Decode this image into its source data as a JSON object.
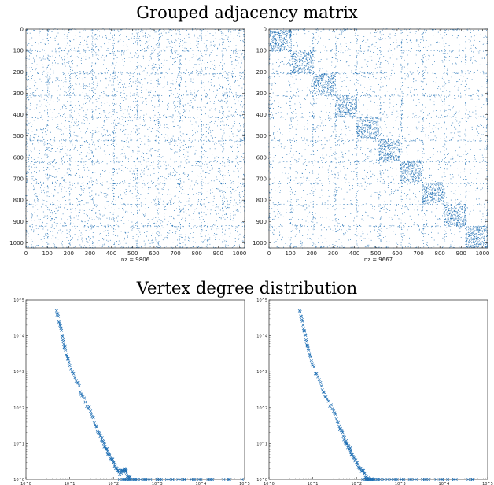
{
  "titles": {
    "top": "Grouped adjacency matrix",
    "bottom": "Vertex degree distribution"
  },
  "colors": {
    "marker": "#1f6fb4",
    "axis": "#262626"
  },
  "chart_data": [
    {
      "id": "spy_left",
      "type": "scatter",
      "subtype": "sparsity-pattern",
      "xlabel": "nz = 9806",
      "xlim": [
        0,
        1024
      ],
      "ylim": [
        0,
        1024
      ],
      "y_reversed": true,
      "xticks": [
        0,
        100,
        200,
        300,
        400,
        500,
        600,
        700,
        800,
        900,
        1000
      ],
      "yticks": [
        0,
        100,
        200,
        300,
        400,
        500,
        600,
        700,
        800,
        900,
        1000
      ],
      "nz": 9806,
      "dense_lines": [
        0,
        100,
        205,
        310,
        410,
        520,
        620,
        720,
        820,
        920,
        1020
      ],
      "diagonal_blocks": false
    },
    {
      "id": "spy_right",
      "type": "scatter",
      "subtype": "sparsity-pattern",
      "xlabel": "nz = 9667",
      "xlim": [
        0,
        1024
      ],
      "ylim": [
        0,
        1024
      ],
      "y_reversed": true,
      "xticks": [
        0,
        100,
        200,
        300,
        400,
        500,
        600,
        700,
        800,
        900,
        1000
      ],
      "yticks": [
        0,
        100,
        200,
        300,
        400,
        500,
        600,
        700,
        800,
        900,
        1000
      ],
      "nz": 9667,
      "dense_lines": [
        0,
        100,
        205,
        310,
        410,
        520,
        620,
        720,
        820,
        920,
        1020
      ],
      "diagonal_blocks": true,
      "block_size": 102
    },
    {
      "id": "degree_left",
      "type": "scatter",
      "marker": "x",
      "xscale": "log",
      "yscale": "log",
      "xlim": [
        1,
        100000
      ],
      "ylim": [
        1,
        100000
      ],
      "xticks": [
        "10^0",
        "10^1",
        "10^2",
        "10^3",
        "10^4",
        "10^5"
      ],
      "yticks": [
        "10^0",
        "10^1",
        "10^2",
        "10^3",
        "10^4",
        "10^5"
      ],
      "x": [
        5,
        6,
        7,
        8,
        10,
        15,
        20,
        30,
        40,
        50,
        60,
        70,
        80,
        100,
        120,
        150,
        180,
        200,
        250,
        300,
        500,
        1000,
        3000,
        10000
      ],
      "y": [
        50000,
        20000,
        8000,
        4000,
        1500,
        500,
        200,
        80,
        30,
        16,
        10,
        7,
        5,
        3,
        2,
        1.5,
        2,
        1.5,
        1,
        1,
        1,
        1,
        1,
        1
      ],
      "tail_x": [
        120,
        150,
        200,
        300,
        500,
        800,
        1500,
        3000,
        6000,
        12000,
        30000,
        80000
      ]
    },
    {
      "id": "degree_right",
      "type": "scatter",
      "marker": "x",
      "xscale": "log",
      "yscale": "log",
      "xlim": [
        1,
        100000
      ],
      "ylim": [
        1,
        100000
      ],
      "xticks": [
        "10^0",
        "10^1",
        "10^2",
        "10^3",
        "10^4",
        "10^5"
      ],
      "yticks": [
        "10^0",
        "10^1",
        "10^2",
        "10^3",
        "10^4",
        "10^5"
      ],
      "x": [
        5,
        6,
        7,
        8,
        10,
        15,
        20,
        30,
        40,
        50,
        60,
        70,
        80,
        100,
        120,
        150,
        180,
        200,
        250,
        300
      ],
      "y": [
        50000,
        20000,
        8000,
        4000,
        1500,
        500,
        200,
        80,
        30,
        16,
        10,
        7,
        5,
        3,
        2,
        1.5,
        1,
        1,
        1,
        1
      ],
      "tail_x": [
        120,
        150,
        200,
        300,
        500,
        800,
        1500,
        3000,
        6000,
        12000,
        30000
      ]
    }
  ]
}
